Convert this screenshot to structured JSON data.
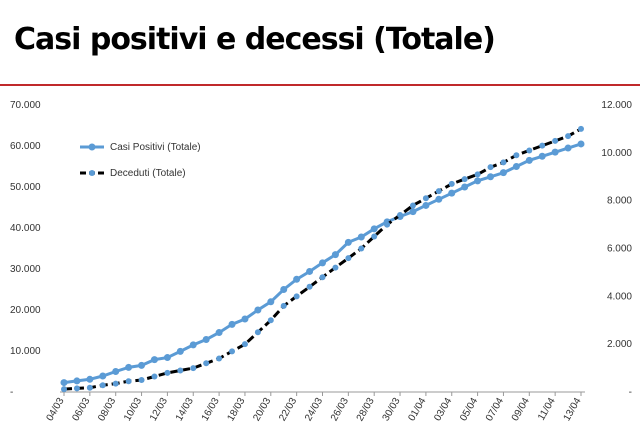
{
  "page": {
    "title": "Casi positivi e decessi (Totale)"
  },
  "chart_data": {
    "type": "line",
    "title": "Casi positivi e decessi (Totale)",
    "legend_placement": "top-left",
    "grid": false,
    "x": [
      "04/03",
      "05/03",
      "06/03",
      "07/03",
      "08/03",
      "09/03",
      "10/03",
      "11/03",
      "12/03",
      "13/03",
      "14/03",
      "15/03",
      "16/03",
      "17/03",
      "18/03",
      "19/03",
      "20/03",
      "21/03",
      "22/03",
      "23/03",
      "24/03",
      "25/03",
      "26/03",
      "27/03",
      "28/03",
      "29/03",
      "30/03",
      "31/03",
      "01/04",
      "02/04",
      "03/04",
      "04/04",
      "05/04",
      "06/04",
      "07/04",
      "08/04",
      "09/04",
      "10/04",
      "11/04",
      "12/04",
      "13/04"
    ],
    "x_tick_labels": [
      "04/03",
      "06/03",
      "08/03",
      "10/03",
      "12/03",
      "14/03",
      "16/03",
      "18/03",
      "20/03",
      "22/03",
      "24/03",
      "26/03",
      "28/03",
      "30/03",
      "01/04",
      "03/04",
      "05/04",
      "07/04",
      "09/04",
      "11/04",
      "13/04"
    ],
    "y_left": {
      "min": 0,
      "max": 70000,
      "ticks": [
        "-",
        "10.000",
        "20.000",
        "30.000",
        "40.000",
        "50.000",
        "60.000",
        "70.000"
      ]
    },
    "y_right": {
      "min": 0,
      "max": 12000,
      "ticks": [
        "-",
        "2.000",
        "4.000",
        "6.000",
        "8.000",
        "10.000",
        "12.000"
      ]
    },
    "series": [
      {
        "name": "Casi Positivi (Totale)",
        "axis": "left",
        "color": "#5b9bd5",
        "values": [
          2300,
          2700,
          3100,
          3900,
          5000,
          6000,
          6500,
          7900,
          8400,
          9900,
          11500,
          12800,
          14500,
          16500,
          17800,
          20000,
          22000,
          25000,
          27500,
          29400,
          31500,
          33500,
          36500,
          37800,
          39800,
          41500,
          42800,
          44000,
          45500,
          47000,
          48500,
          50000,
          51500,
          52500,
          53500,
          55000,
          56500,
          57500,
          58500,
          59500,
          60500
        ]
      },
      {
        "name": "Deceduti (Totale)",
        "axis": "right",
        "color": "#000000",
        "values": [
          120,
          150,
          180,
          280,
          350,
          450,
          500,
          650,
          800,
          900,
          1000,
          1200,
          1400,
          1700,
          2000,
          2500,
          3000,
          3600,
          4000,
          4400,
          4800,
          5200,
          5600,
          6000,
          6500,
          7000,
          7400,
          7800,
          8100,
          8400,
          8700,
          8900,
          9100,
          9400,
          9600,
          9900,
          10100,
          10300,
          10500,
          10700,
          11000
        ]
      }
    ]
  }
}
